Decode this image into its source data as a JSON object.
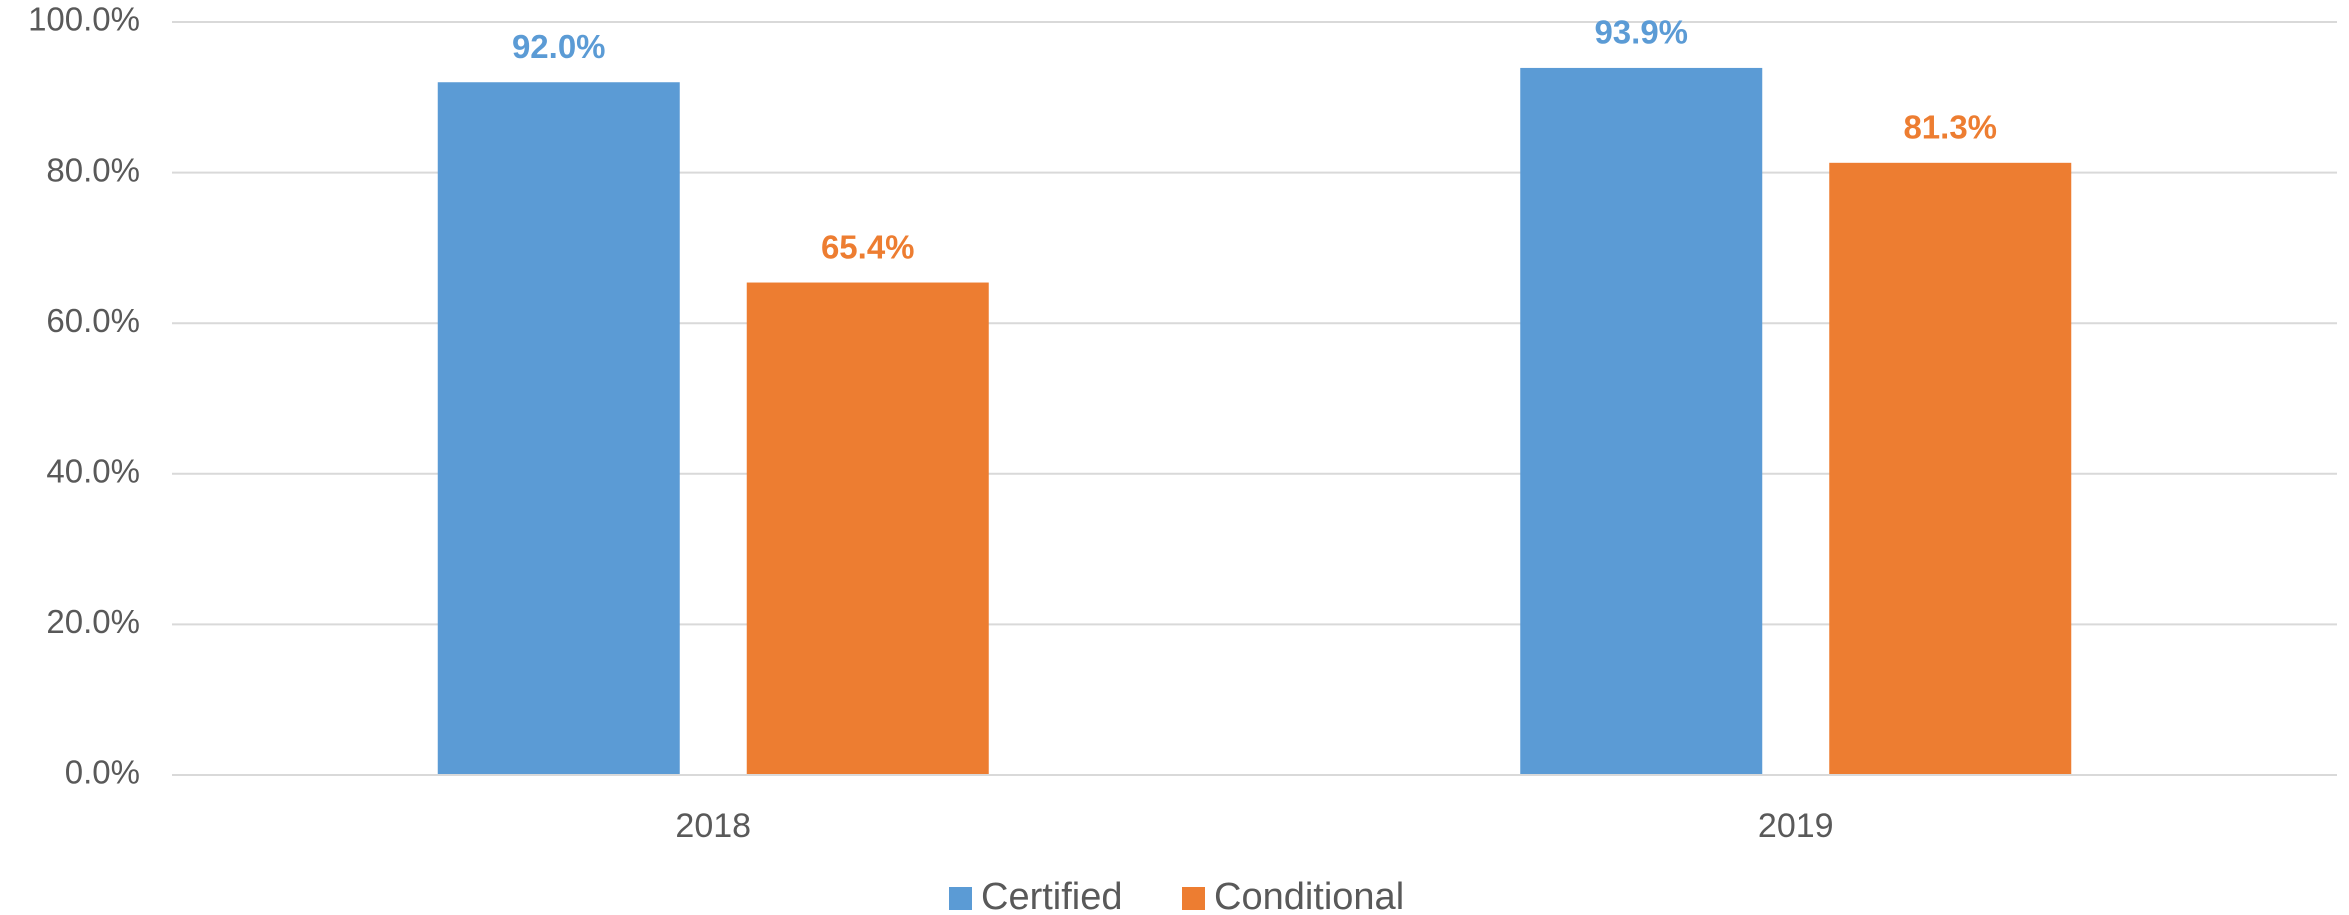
{
  "chart_data": {
    "type": "bar",
    "categories": [
      "2018",
      "2019"
    ],
    "series": [
      {
        "name": "Certified",
        "color": "#5b9bd5",
        "values": [
          92.0,
          93.9
        ],
        "value_labels": [
          "92.0%",
          "93.9%"
        ]
      },
      {
        "name": "Conditional",
        "color": "#ed7d31",
        "values": [
          65.4,
          81.3
        ],
        "value_labels": [
          "65.4%",
          "81.3%"
        ]
      }
    ],
    "ylim": [
      0,
      100
    ],
    "yticks": [
      {
        "value": 0,
        "label": "0.0%"
      },
      {
        "value": 20,
        "label": "20.0%"
      },
      {
        "value": 40,
        "label": "40.0%"
      },
      {
        "value": 60,
        "label": "60.0%"
      },
      {
        "value": 80,
        "label": "80.0%"
      },
      {
        "value": 100,
        "label": "100.0%"
      }
    ],
    "grid": true,
    "legend": "bottom"
  }
}
